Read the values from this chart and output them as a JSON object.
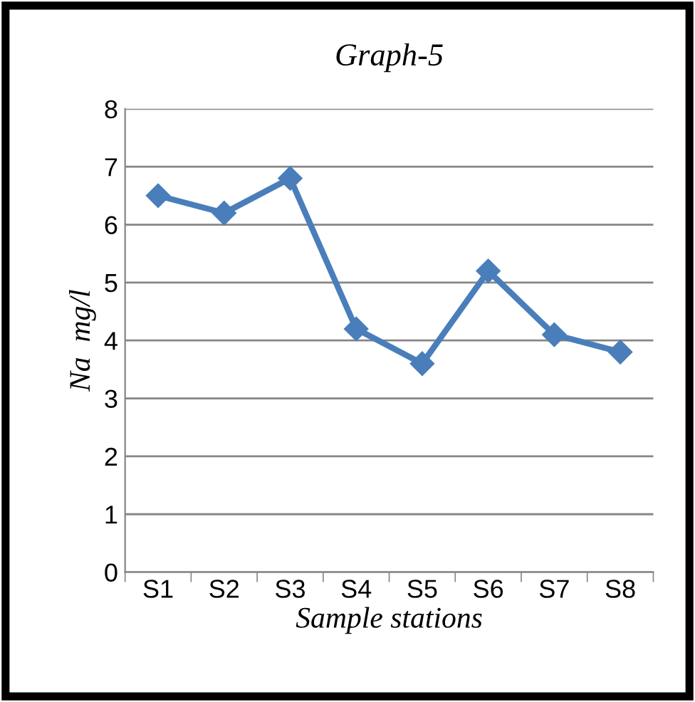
{
  "chart_data": {
    "type": "line",
    "title": "Graph-5",
    "xlabel": "Sample stations",
    "ylabel": "Na  mg/l",
    "categories": [
      "S1",
      "S2",
      "S3",
      "S4",
      "S5",
      "S6",
      "S7",
      "S8"
    ],
    "series": [
      {
        "color": "#4a7ebb",
        "values": [
          6.5,
          6.2,
          6.8,
          4.2,
          3.6,
          5.2,
          4.1,
          3.8
        ]
      }
    ],
    "ylim": [
      0,
      8
    ],
    "yticks": [
      0,
      1,
      2,
      3,
      4,
      5,
      6,
      7,
      8
    ],
    "grid": "y",
    "marker": "diamond",
    "line_style": "solid",
    "legend": false
  }
}
